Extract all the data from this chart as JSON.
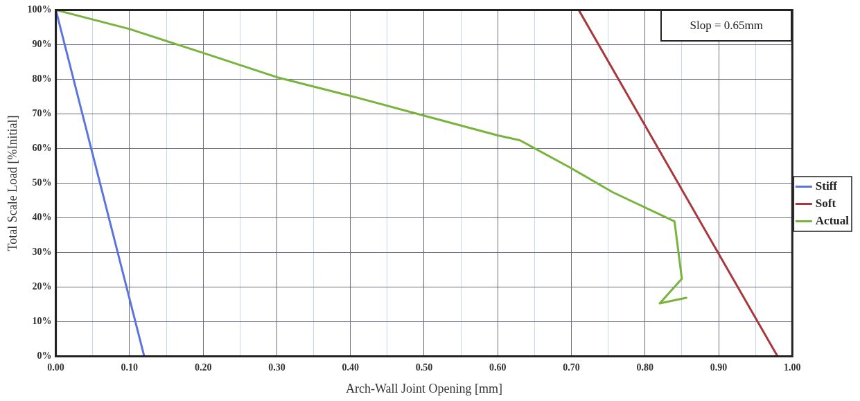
{
  "chart_data": {
    "type": "line",
    "xlabel": "Arch-Wall Joint Opening [mm]",
    "ylabel": "Total Scale Load [%Initial]",
    "annotations": [
      "Slop = 0.65mm"
    ],
    "xlim": [
      0,
      1
    ],
    "ylim": [
      0,
      100
    ],
    "xticks": [
      {
        "value": 0,
        "label": "0.00"
      },
      {
        "value": 0.05,
        "label": null
      },
      {
        "value": 0.1,
        "label": "0.10"
      },
      {
        "value": 0.15,
        "label": null
      },
      {
        "value": 0.2,
        "label": "0.20"
      },
      {
        "value": 0.25,
        "label": null
      },
      {
        "value": 0.3,
        "label": "0.30"
      },
      {
        "value": 0.35,
        "label": null
      },
      {
        "value": 0.4,
        "label": "0.40"
      },
      {
        "value": 0.45,
        "label": null
      },
      {
        "value": 0.5,
        "label": "0.50"
      },
      {
        "value": 0.55,
        "label": null
      },
      {
        "value": 0.6,
        "label": "0.60"
      },
      {
        "value": 0.65,
        "label": null
      },
      {
        "value": 0.7,
        "label": "0.70"
      },
      {
        "value": 0.75,
        "label": null
      },
      {
        "value": 0.8,
        "label": "0.80"
      },
      {
        "value": 0.85,
        "label": null
      },
      {
        "value": 0.9,
        "label": "0.90"
      },
      {
        "value": 0.95,
        "label": null
      },
      {
        "value": 1,
        "label": "1.00"
      }
    ],
    "yticks": [
      {
        "value": 0,
        "label": "0%"
      },
      {
        "value": 10,
        "label": "10%"
      },
      {
        "value": 20,
        "label": "20%"
      },
      {
        "value": 30,
        "label": "30%"
      },
      {
        "value": 40,
        "label": "40%"
      },
      {
        "value": 50,
        "label": "50%"
      },
      {
        "value": 60,
        "label": "60%"
      },
      {
        "value": 70,
        "label": "70%"
      },
      {
        "value": 80,
        "label": "80%"
      },
      {
        "value": 90,
        "label": "90%"
      },
      {
        "value": 100,
        "label": "100%"
      }
    ],
    "grid": true,
    "legend": "right",
    "marker": "none",
    "line_style": "solid",
    "series": [
      {
        "name": "Stiff",
        "color": "#5b74e0",
        "x": [
          0,
          0.12
        ],
        "values": [
          100,
          0
        ]
      },
      {
        "name": "Soft",
        "color": "#a8383c",
        "x": [
          0.71,
          0.98
        ],
        "values": [
          100,
          0
        ]
      },
      {
        "name": "Actual",
        "color": "#78b43c",
        "x": [
          0,
          0.1,
          0.2,
          0.3,
          0.4,
          0.5,
          0.6,
          0.63,
          0.7,
          0.756,
          0.84,
          0.85,
          0.82,
          0.856
        ],
        "values": [
          100,
          94.5,
          87.6,
          80.6,
          75.2,
          69.5,
          63.8,
          62.4,
          54.3,
          47.4,
          39,
          22.4,
          15.3,
          16.9
        ]
      }
    ]
  }
}
